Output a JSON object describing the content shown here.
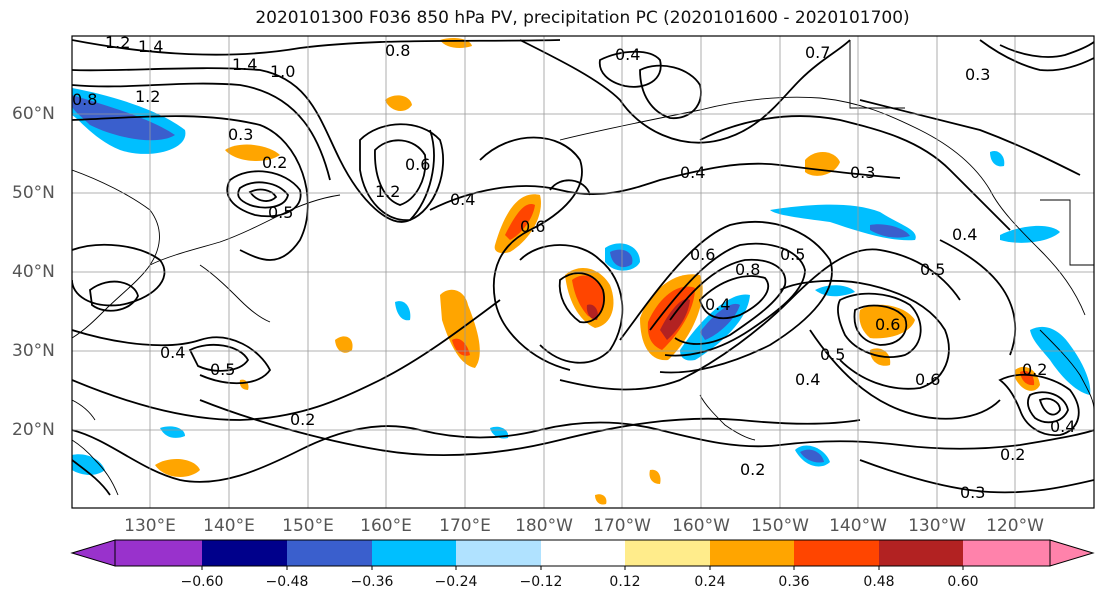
{
  "title": "2020101300 F036 850 hPa PV, precipitation PC (2020101600 - 2020101700)",
  "map": {
    "lat_labels": [
      "60°N",
      "50°N",
      "40°N",
      "30°N",
      "20°N"
    ],
    "lon_labels": [
      "130°E",
      "140°E",
      "150°E",
      "160°E",
      "170°E",
      "180°W",
      "170°W",
      "160°W",
      "150°W",
      "140°W",
      "130°W",
      "120°W"
    ],
    "contour_labels": [
      "1.2",
      "1.4",
      "1.4",
      "1.0",
      "1.2",
      "0.8",
      "0.8",
      "0.4",
      "0.7",
      "0.3",
      "0.3",
      "0.2",
      "0.5",
      "0.6",
      "1.2",
      "0.4",
      "0.4",
      "0.6",
      "0.3",
      "0.4",
      "0.5",
      "0.6",
      "0.5",
      "0.8",
      "0.4",
      "0.6",
      "0.6",
      "0.5",
      "0.2",
      "0.4",
      "0.4",
      "0.2",
      "0.2",
      "0.3",
      "0.5",
      "0.4",
      "0.2"
    ]
  },
  "colorbar": {
    "ticks": [
      "−0.60",
      "−0.48",
      "−0.36",
      "−0.24",
      "−0.12",
      "0.12",
      "0.24",
      "0.36",
      "0.48",
      "0.60"
    ],
    "colors": [
      "#9932cc",
      "#00008b",
      "#3a5fcd",
      "#00bfff",
      "#b0e2ff",
      "#ffffff",
      "#ffec8b",
      "#ffa500",
      "#ff4500",
      "#b22222",
      "#ff82ab"
    ]
  }
}
